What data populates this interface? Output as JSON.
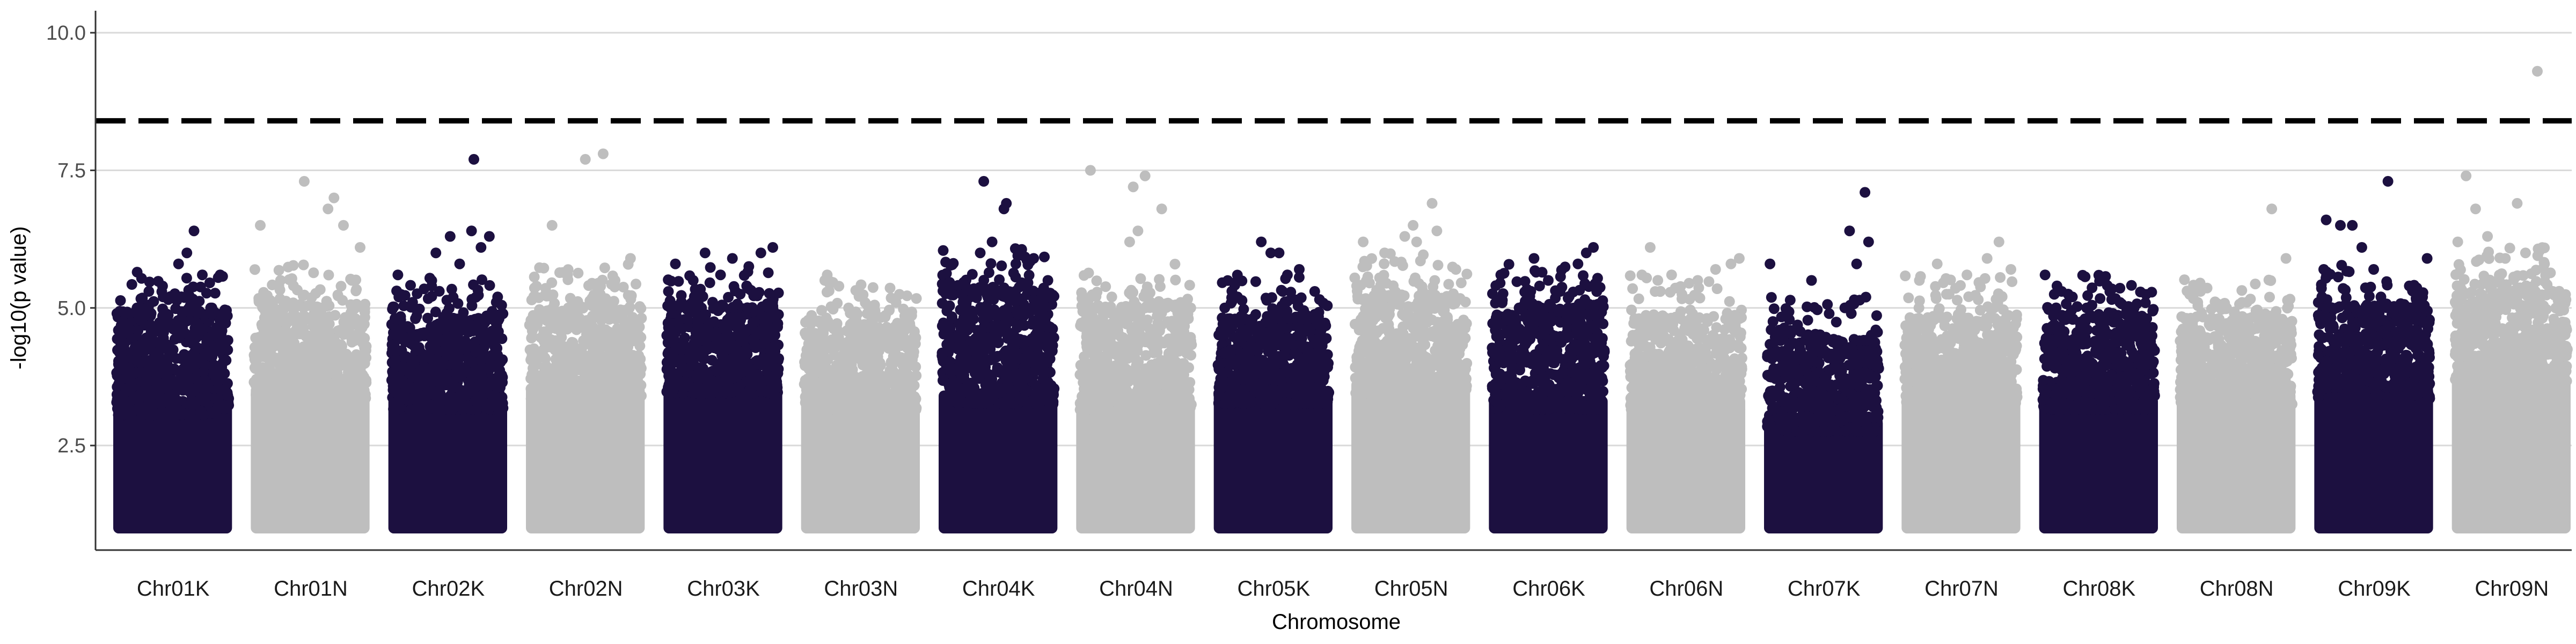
{
  "chart_data": {
    "type": "scatter",
    "subtype": "manhattan",
    "title": "",
    "xlabel": "Chromosome",
    "ylabel": "-log10(p value)",
    "ylim": [
      0.6,
      10.4
    ],
    "y_ticks": [
      "2.5",
      "5.0",
      "7.5",
      "10.0"
    ],
    "y_tick_values": [
      2.5,
      5.0,
      7.5,
      10.0
    ],
    "grid": "horizontal major gridlines",
    "threshold": {
      "value": 8.4,
      "style": "dashed"
    },
    "colors": {
      "odd": "#1c1040",
      "even": "#bebebe",
      "threshold": "#000000",
      "grid": "#d9d9d9"
    },
    "categories": [
      "Chr01K",
      "Chr01N",
      "Chr02K",
      "Chr02N",
      "Chr03K",
      "Chr03N",
      "Chr04K",
      "Chr04N",
      "Chr05K",
      "Chr05N",
      "Chr06K",
      "Chr06N",
      "Chr07K",
      "Chr07N",
      "Chr08K",
      "Chr08N",
      "Chr09K",
      "Chr09N"
    ],
    "series": [
      {
        "chromosome": "Chr01K",
        "color": "#1c1040",
        "base_top": 3.3,
        "scatter_top": 4.9,
        "top_points": [
          [
            0.1,
            4.9
          ],
          [
            0.2,
            5.0
          ],
          [
            0.3,
            5.3
          ],
          [
            0.42,
            5.2
          ],
          [
            0.55,
            5.8
          ],
          [
            0.62,
            6.0
          ],
          [
            0.68,
            6.4
          ],
          [
            0.75,
            5.6
          ],
          [
            0.82,
            5.0
          ],
          [
            0.9,
            5.6
          ]
        ]
      },
      {
        "chromosome": "Chr01N",
        "color": "#bebebe",
        "base_top": 3.6,
        "scatter_top": 5.0,
        "top_points": [
          [
            0.08,
            6.5
          ],
          [
            0.25,
            5.5
          ],
          [
            0.45,
            7.3
          ],
          [
            0.65,
            6.8
          ],
          [
            0.7,
            7.0
          ],
          [
            0.78,
            6.5
          ],
          [
            0.85,
            5.5
          ],
          [
            0.92,
            6.1
          ]
        ]
      },
      {
        "chromosome": "Chr02K",
        "color": "#1c1040",
        "base_top": 3.4,
        "scatter_top": 4.8,
        "top_points": [
          [
            0.08,
            5.6
          ],
          [
            0.22,
            5.0
          ],
          [
            0.4,
            6.0
          ],
          [
            0.52,
            6.3
          ],
          [
            0.6,
            5.8
          ],
          [
            0.7,
            6.4
          ],
          [
            0.72,
            7.7
          ],
          [
            0.78,
            6.1
          ],
          [
            0.85,
            6.3
          ],
          [
            0.92,
            5.2
          ]
        ]
      },
      {
        "chromosome": "Chr02N",
        "color": "#bebebe",
        "base_top": 3.6,
        "scatter_top": 5.0,
        "top_points": [
          [
            0.22,
            6.5
          ],
          [
            0.35,
            5.6
          ],
          [
            0.5,
            7.7
          ],
          [
            0.65,
            7.8
          ],
          [
            0.75,
            5.5
          ],
          [
            0.88,
            5.9
          ]
        ]
      },
      {
        "chromosome": "Chr03K",
        "color": "#1c1040",
        "base_top": 3.7,
        "scatter_top": 5.0,
        "top_points": [
          [
            0.1,
            5.8
          ],
          [
            0.25,
            5.5
          ],
          [
            0.35,
            6.0
          ],
          [
            0.48,
            5.6
          ],
          [
            0.58,
            5.9
          ],
          [
            0.7,
            5.4
          ],
          [
            0.82,
            6.0
          ],
          [
            0.92,
            6.1
          ]
        ]
      },
      {
        "chromosome": "Chr03N",
        "color": "#bebebe",
        "base_top": 3.4,
        "scatter_top": 4.7,
        "top_points": [
          [
            0.2,
            5.5
          ],
          [
            0.22,
            5.6
          ],
          [
            0.4,
            5.0
          ],
          [
            0.6,
            4.9
          ],
          [
            0.8,
            5.1
          ]
        ]
      },
      {
        "chromosome": "Chr04K",
        "color": "#1c1040",
        "base_top": 3.5,
        "scatter_top": 5.3,
        "top_points": [
          [
            0.35,
            6.0
          ],
          [
            0.38,
            7.3
          ],
          [
            0.45,
            6.2
          ],
          [
            0.55,
            6.8
          ],
          [
            0.57,
            6.9
          ],
          [
            0.65,
            5.8
          ],
          [
            0.8,
            5.9
          ],
          [
            0.92,
            5.5
          ]
        ]
      },
      {
        "chromosome": "Chr04N",
        "color": "#bebebe",
        "base_top": 3.4,
        "scatter_top": 5.0,
        "top_points": [
          [
            0.12,
            7.5
          ],
          [
            0.3,
            5.2
          ],
          [
            0.45,
            6.2
          ],
          [
            0.48,
            7.2
          ],
          [
            0.52,
            6.4
          ],
          [
            0.58,
            7.4
          ],
          [
            0.72,
            6.8
          ],
          [
            0.88,
            5.1
          ]
        ]
      },
      {
        "chromosome": "Chr05K",
        "color": "#1c1040",
        "base_top": 3.5,
        "scatter_top": 4.8,
        "top_points": [
          [
            0.2,
            5.2
          ],
          [
            0.4,
            6.2
          ],
          [
            0.48,
            6.0
          ],
          [
            0.55,
            6.0
          ],
          [
            0.58,
            5.3
          ],
          [
            0.62,
            5.6
          ],
          [
            0.72,
            5.7
          ],
          [
            0.85,
            5.3
          ]
        ]
      },
      {
        "chromosome": "Chr05N",
        "color": "#bebebe",
        "base_top": 3.7,
        "scatter_top": 5.2,
        "top_points": [
          [
            0.1,
            6.2
          ],
          [
            0.28,
            6.0
          ],
          [
            0.45,
            6.3
          ],
          [
            0.52,
            6.5
          ],
          [
            0.55,
            6.2
          ],
          [
            0.68,
            6.9
          ],
          [
            0.72,
            6.4
          ],
          [
            0.88,
            5.7
          ]
        ]
      },
      {
        "chromosome": "Chr06K",
        "color": "#1c1040",
        "base_top": 3.4,
        "scatter_top": 5.0,
        "top_points": [
          [
            0.1,
            5.6
          ],
          [
            0.38,
            5.9
          ],
          [
            0.5,
            5.5
          ],
          [
            0.6,
            5.3
          ],
          [
            0.75,
            5.8
          ],
          [
            0.82,
            6.0
          ],
          [
            0.88,
            6.1
          ]
        ]
      },
      {
        "chromosome": "Chr06N",
        "color": "#bebebe",
        "base_top": 3.4,
        "scatter_top": 4.8,
        "top_points": [
          [
            0.2,
            6.1
          ],
          [
            0.38,
            5.6
          ],
          [
            0.6,
            5.5
          ],
          [
            0.75,
            5.7
          ],
          [
            0.88,
            5.8
          ],
          [
            0.95,
            5.9
          ]
        ]
      },
      {
        "chromosome": "Chr07K",
        "color": "#1c1040",
        "base_top": 3.0,
        "scatter_top": 4.4,
        "top_points": [
          [
            0.05,
            5.8
          ],
          [
            0.4,
            5.5
          ],
          [
            0.72,
            6.4
          ],
          [
            0.78,
            5.8
          ],
          [
            0.85,
            7.1
          ],
          [
            0.88,
            6.2
          ]
        ]
      },
      {
        "chromosome": "Chr07N",
        "color": "#bebebe",
        "base_top": 3.5,
        "scatter_top": 4.8,
        "top_points": [
          [
            0.15,
            5.5
          ],
          [
            0.3,
            5.8
          ],
          [
            0.55,
            5.6
          ],
          [
            0.72,
            5.9
          ],
          [
            0.82,
            6.2
          ],
          [
            0.92,
            5.7
          ]
        ]
      },
      {
        "chromosome": "Chr08K",
        "color": "#1c1040",
        "base_top": 3.4,
        "scatter_top": 4.8,
        "top_points": [
          [
            0.05,
            5.6
          ],
          [
            0.15,
            5.4
          ],
          [
            0.28,
            5.2
          ],
          [
            0.4,
            5.0
          ],
          [
            0.5,
            4.8
          ],
          [
            0.62,
            4.9
          ],
          [
            0.68,
            5.1
          ],
          [
            0.8,
            5.0
          ]
        ]
      },
      {
        "chromosome": "Chr08N",
        "color": "#bebebe",
        "base_top": 3.5,
        "scatter_top": 4.8,
        "top_points": [
          [
            0.2,
            5.3
          ],
          [
            0.42,
            5.0
          ],
          [
            0.55,
            5.1
          ],
          [
            0.8,
            6.8
          ],
          [
            0.92,
            5.9
          ]
        ]
      },
      {
        "chromosome": "Chr09K",
        "color": "#1c1040",
        "base_top": 3.6,
        "scatter_top": 5.0,
        "top_points": [
          [
            0.08,
            5.7
          ],
          [
            0.1,
            6.6
          ],
          [
            0.22,
            6.5
          ],
          [
            0.32,
            6.5
          ],
          [
            0.4,
            6.1
          ],
          [
            0.5,
            5.7
          ],
          [
            0.62,
            7.3
          ],
          [
            0.8,
            5.4
          ],
          [
            0.88,
            5.0
          ],
          [
            0.95,
            5.9
          ]
        ]
      },
      {
        "chromosome": "Chr09N",
        "color": "#bebebe",
        "base_top": 3.8,
        "scatter_top": 5.3,
        "top_points": [
          [
            0.05,
            6.2
          ],
          [
            0.12,
            7.4
          ],
          [
            0.2,
            6.8
          ],
          [
            0.3,
            6.3
          ],
          [
            0.45,
            5.9
          ],
          [
            0.55,
            6.9
          ],
          [
            0.62,
            6.0
          ],
          [
            0.72,
            9.3
          ],
          [
            0.78,
            5.8
          ],
          [
            0.85,
            5.3
          ]
        ]
      }
    ]
  }
}
